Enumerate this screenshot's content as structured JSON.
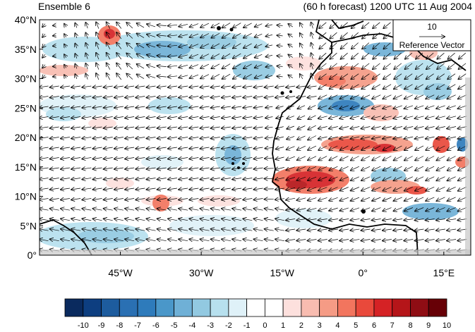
{
  "header": {
    "title_left": "Ensemble 6",
    "title_right": "(60 h forecast) 1200 UTC 11 Aug 2004"
  },
  "map": {
    "lat_labels": [
      "40°N",
      "35°N",
      "30°N",
      "25°N",
      "20°N",
      "15°N",
      "10°N",
      "5°N",
      "0°"
    ],
    "lon_labels": [
      "45°W",
      "30°W",
      "15°W",
      "0°",
      "15°E"
    ],
    "lat_range": [
      0,
      40
    ],
    "lon_range": [
      -60,
      20
    ],
    "coastline_color": "#000000"
  },
  "reference_vector": {
    "value": "10",
    "label": "Reference Vector"
  },
  "colorbar": {
    "labels": [
      "-10",
      "-9",
      "-8",
      "-7",
      "-6",
      "-5",
      "-4",
      "-3",
      "-2",
      "-1",
      "0",
      "1",
      "2",
      "3",
      "4",
      "5",
      "6",
      "7",
      "8",
      "9",
      "10"
    ],
    "colors": [
      "#0a2a5e",
      "#0d3e80",
      "#1d5c9e",
      "#2a70b3",
      "#2e7bbb",
      "#4a97c9",
      "#6fb0d6",
      "#92c9e1",
      "#b7e0ee",
      "#dff1f8",
      "#ffffff",
      "#ffffff",
      "#fde0dd",
      "#f8bcb0",
      "#f59b85",
      "#f2755e",
      "#e9493b",
      "#d52225",
      "#b51519",
      "#8f0d14",
      "#670006"
    ]
  }
}
